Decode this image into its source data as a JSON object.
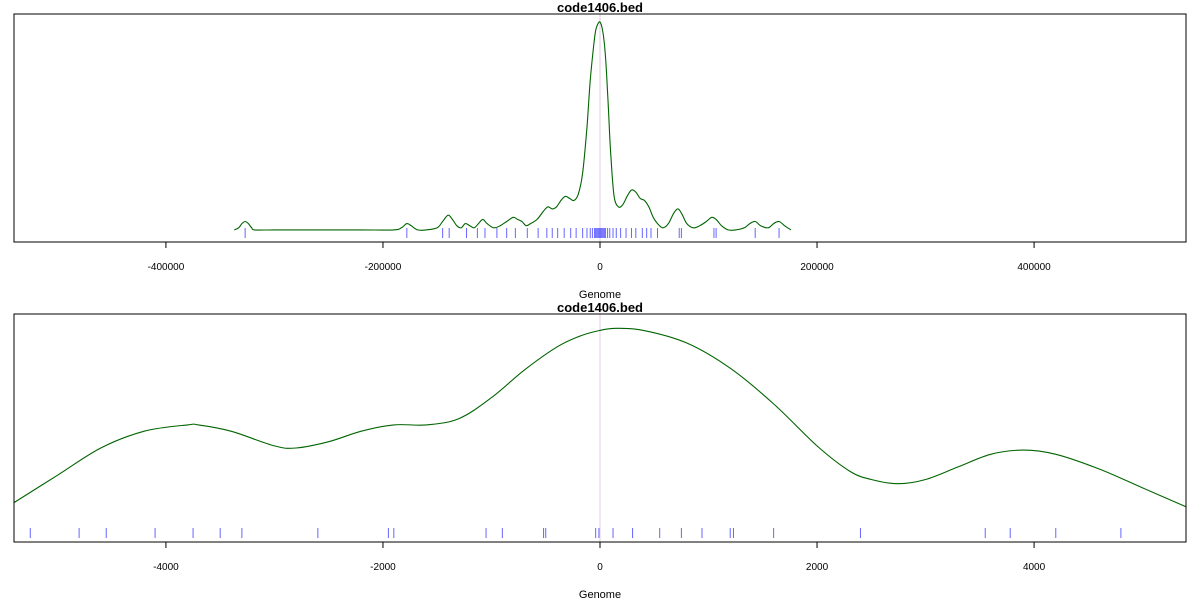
{
  "chart_data": [
    {
      "type": "line",
      "title": "code1406.bed",
      "xlabel": "Genome",
      "ylabel": "",
      "xlim": [
        -540000,
        540000
      ],
      "ylim": [
        0,
        1.0
      ],
      "x_ticks": [
        -400000,
        -200000,
        0,
        200000,
        400000
      ],
      "x_tick_labels": [
        "-400000",
        "-200000",
        "0",
        "200000",
        "400000"
      ],
      "center_line_x": 0,
      "series": [
        {
          "color": "#006400",
          "x": [
            -337000,
            -333000,
            -330000,
            -327000,
            -324000,
            -321000,
            -318000,
            -300000,
            -260000,
            -220000,
            -190000,
            -183000,
            -178000,
            -174000,
            -168000,
            -160000,
            -150000,
            -145000,
            -140000,
            -136000,
            -132000,
            -128000,
            -124000,
            -120000,
            -116000,
            -112000,
            -108000,
            -104000,
            -98000,
            -92000,
            -86000,
            -80000,
            -76000,
            -72000,
            -68000,
            -64000,
            -58000,
            -52000,
            -48000,
            -44000,
            -40000,
            -36000,
            -32000,
            -28000,
            -24000,
            -20000,
            -16000,
            -12000,
            -9000,
            -6000,
            -4000,
            -2000,
            0,
            2000,
            4000,
            6000,
            8000,
            10000,
            13000,
            17000,
            21000,
            25000,
            29000,
            33000,
            37000,
            41000,
            45000,
            49000,
            53000,
            58000,
            63000,
            68000,
            72000,
            76000,
            80000,
            86000,
            92000,
            98000,
            103000,
            107000,
            112000,
            118000,
            125000,
            133000,
            138000,
            143000,
            148000,
            155000,
            160000,
            165000,
            170000,
            176000
          ],
          "y": [
            0.01,
            0.02,
            0.04,
            0.05,
            0.04,
            0.02,
            0.01,
            0.01,
            0.01,
            0.01,
            0.01,
            0.02,
            0.04,
            0.03,
            0.01,
            0.01,
            0.02,
            0.05,
            0.08,
            0.06,
            0.03,
            0.02,
            0.04,
            0.03,
            0.02,
            0.04,
            0.06,
            0.04,
            0.02,
            0.03,
            0.05,
            0.07,
            0.06,
            0.05,
            0.03,
            0.04,
            0.06,
            0.1,
            0.12,
            0.11,
            0.12,
            0.15,
            0.17,
            0.16,
            0.15,
            0.18,
            0.28,
            0.5,
            0.72,
            0.88,
            0.96,
            0.99,
            1.0,
            0.97,
            0.9,
            0.76,
            0.56,
            0.36,
            0.17,
            0.12,
            0.13,
            0.17,
            0.2,
            0.19,
            0.16,
            0.15,
            0.12,
            0.07,
            0.04,
            0.02,
            0.04,
            0.09,
            0.11,
            0.08,
            0.04,
            0.02,
            0.03,
            0.05,
            0.07,
            0.06,
            0.03,
            0.01,
            0.01,
            0.02,
            0.04,
            0.05,
            0.03,
            0.02,
            0.04,
            0.05,
            0.03,
            0.01
          ]
        }
      ],
      "rug": [
        -327000,
        -178000,
        -145000,
        -139000,
        -123000,
        -113000,
        -106000,
        -95000,
        -86000,
        -78000,
        -67000,
        -57000,
        -49000,
        -44000,
        -39000,
        -33000,
        -27000,
        -22000,
        -16000,
        -12000,
        -9000,
        -7000,
        -5000,
        -4000,
        -3000,
        -2000,
        -1000,
        0,
        1000,
        2000,
        3000,
        4000,
        5000,
        7000,
        9000,
        12000,
        15000,
        19000,
        24000,
        29000,
        33000,
        39000,
        43000,
        47000,
        53000,
        73000,
        75000,
        105000,
        107000,
        143000,
        165000
      ]
    },
    {
      "type": "line",
      "title": "code1406.bed",
      "xlabel": "Genome",
      "ylabel": "",
      "xlim": [
        -5400,
        5400
      ],
      "ylim": [
        0,
        1.0
      ],
      "x_ticks": [
        -4000,
        -2000,
        0,
        2000,
        4000
      ],
      "x_tick_labels": [
        "-4000",
        "-2000",
        "0",
        "2000",
        "4000"
      ],
      "center_line_x": 0,
      "series": [
        {
          "color": "#006400",
          "x": [
            -5400,
            -5000,
            -4600,
            -4200,
            -3800,
            -3700,
            -3400,
            -3000,
            -2800,
            -2500,
            -2200,
            -1900,
            -1600,
            -1300,
            -1000,
            -700,
            -400,
            -200,
            0,
            150,
            400,
            800,
            1200,
            1600,
            2000,
            2300,
            2500,
            2750,
            3000,
            3300,
            3600,
            3900,
            4200,
            4600,
            5000,
            5400
          ],
          "y": [
            0.14,
            0.27,
            0.4,
            0.48,
            0.51,
            0.51,
            0.48,
            0.41,
            0.4,
            0.43,
            0.48,
            0.51,
            0.51,
            0.54,
            0.64,
            0.77,
            0.88,
            0.93,
            0.96,
            0.97,
            0.96,
            0.9,
            0.78,
            0.61,
            0.41,
            0.29,
            0.25,
            0.23,
            0.25,
            0.31,
            0.37,
            0.39,
            0.37,
            0.3,
            0.21,
            0.12
          ]
        }
      ],
      "rug": [
        -5250,
        -4800,
        -4550,
        -4100,
        -3750,
        -3500,
        -3300,
        -2600,
        -1950,
        -1900,
        -1050,
        -900,
        -520,
        -500,
        -40,
        -10,
        120,
        300,
        550,
        750,
        940,
        1200,
        1230,
        1600,
        2400,
        3550,
        3780,
        4200,
        4800
      ]
    }
  ]
}
